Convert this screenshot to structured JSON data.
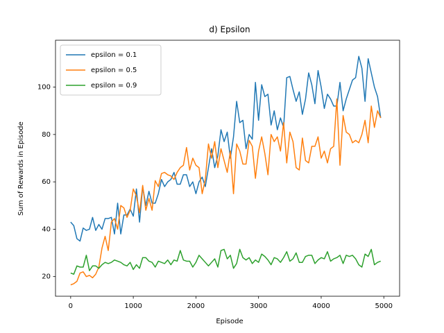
{
  "chart_data": {
    "type": "line",
    "title": "d) Epsilon",
    "x_label": "Episode",
    "y_label": "Sum of Rewards in Episode",
    "x": [
      0,
      50,
      100,
      150,
      200,
      250,
      300,
      350,
      400,
      450,
      500,
      550,
      600,
      650,
      700,
      750,
      800,
      850,
      900,
      950,
      1000,
      1050,
      1100,
      1150,
      1200,
      1250,
      1300,
      1350,
      1400,
      1450,
      1500,
      1550,
      1600,
      1650,
      1700,
      1750,
      1800,
      1850,
      1900,
      1950,
      2000,
      2050,
      2100,
      2150,
      2200,
      2250,
      2300,
      2350,
      2400,
      2450,
      2500,
      2550,
      2600,
      2650,
      2700,
      2750,
      2800,
      2850,
      2900,
      2950,
      3000,
      3050,
      3100,
      3150,
      3200,
      3250,
      3300,
      3350,
      3400,
      3450,
      3500,
      3550,
      3600,
      3650,
      3700,
      3750,
      3800,
      3850,
      3900,
      3950,
      4000,
      4050,
      4100,
      4150,
      4200,
      4250,
      4300,
      4350,
      4400,
      4450,
      4500,
      4550,
      4600,
      4650,
      4700,
      4750,
      4800,
      4850,
      4900,
      4950
    ],
    "series": [
      {
        "name": "epsilon = 0.1",
        "color": "#1f77b4",
        "values": [
          43,
          41.5,
          36,
          35,
          40.5,
          39.5,
          40,
          45,
          39.5,
          42,
          40,
          44.5,
          44.5,
          45,
          38,
          51,
          38,
          46,
          46,
          48.5,
          45.5,
          57,
          43,
          58,
          50,
          56,
          51,
          51,
          55,
          61,
          58,
          60,
          61,
          64,
          59,
          59,
          63,
          63,
          58,
          60,
          55,
          60,
          62,
          58,
          66,
          74,
          66,
          71,
          82,
          77,
          81,
          70,
          79,
          94,
          85,
          86,
          74,
          80,
          78,
          102,
          86,
          101,
          96,
          97,
          84,
          90,
          82,
          87,
          83,
          104,
          104.5,
          99,
          94,
          98,
          88.5,
          95,
          106,
          101,
          93,
          107,
          100,
          91,
          97,
          95,
          92,
          92,
          102,
          90,
          95,
          99,
          103,
          104,
          113,
          108,
          94,
          112,
          106,
          100,
          96,
          87
        ]
      },
      {
        "name": "epsilon = 0.5",
        "color": "#ff7f0e",
        "values": [
          16.5,
          17,
          18,
          21.5,
          22,
          20,
          20.5,
          19.5,
          21,
          24,
          32,
          37,
          31,
          43,
          44.5,
          40,
          50,
          49,
          45,
          48,
          57,
          54,
          47,
          58.5,
          48,
          53,
          48,
          60.5,
          58,
          63.5,
          64,
          63,
          62.5,
          61,
          64,
          66,
          67,
          74.5,
          65,
          70,
          67,
          66,
          55,
          61,
          76,
          70,
          77,
          66,
          74,
          69,
          64,
          73,
          55,
          76,
          73,
          67.5,
          67.5,
          77.5,
          75,
          61.5,
          73,
          79,
          72,
          63,
          80,
          77,
          79,
          73,
          85,
          68,
          81,
          77,
          66,
          65,
          78.5,
          69,
          68,
          75,
          75,
          79,
          70,
          73,
          68,
          74,
          75,
          95,
          67,
          88,
          81,
          80,
          76.5,
          77.5,
          76.5,
          80,
          86,
          76.5,
          92,
          83,
          90,
          87
        ]
      },
      {
        "name": "epsilon = 0.9",
        "color": "#2ca02c",
        "values": [
          21.5,
          21,
          24.5,
          24,
          24,
          29,
          22.5,
          24.5,
          24.5,
          23.5,
          25,
          26,
          25.5,
          26,
          27,
          26.5,
          26,
          25,
          24.5,
          26,
          23,
          25,
          23.5,
          28,
          28,
          26.5,
          26,
          24,
          26.5,
          26,
          25.5,
          27,
          25,
          27,
          26.5,
          31,
          27,
          26.5,
          26.5,
          24,
          26,
          29,
          27.5,
          26,
          24.5,
          26,
          27.5,
          24,
          31,
          31.5,
          27.5,
          29,
          23.5,
          25.5,
          31.5,
          28,
          27,
          28,
          25.5,
          27,
          26,
          29.5,
          28.5,
          27,
          25,
          28,
          27.5,
          26,
          28,
          30.5,
          26.5,
          27.5,
          30,
          26,
          26,
          28.5,
          29,
          29,
          25.5,
          27,
          28,
          27.5,
          30.5,
          26.5,
          27.5,
          28,
          29,
          25.5,
          29,
          28.5,
          29,
          27.5,
          25,
          24,
          29.5,
          28.5,
          31.5,
          25,
          26,
          26.5
        ]
      }
    ],
    "xlim": [
      -242,
      5252
    ],
    "ylim": [
      11.7,
      119.8
    ],
    "xticks": [
      0,
      1000,
      2000,
      3000,
      4000,
      5000
    ],
    "yticks": [
      20,
      40,
      60,
      80,
      100
    ],
    "legend": "upper left"
  }
}
